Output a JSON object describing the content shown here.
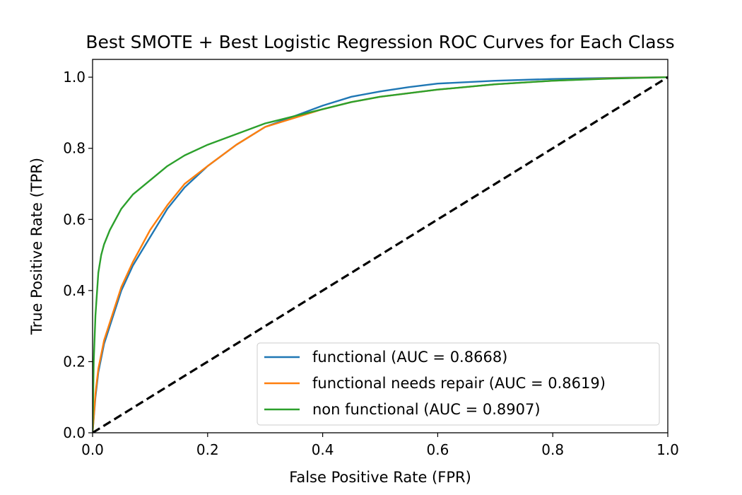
{
  "chart_data": {
    "type": "line",
    "title": "Best SMOTE + Best Logistic Regression ROC Curves for Each Class",
    "xlabel": "False Positive Rate (FPR)",
    "ylabel": "True Positive Rate (TPR)",
    "xlim": [
      0.0,
      1.0
    ],
    "ylim": [
      0.0,
      1.05
    ],
    "xticks": [
      "0.0",
      "0.2",
      "0.4",
      "0.6",
      "0.8",
      "1.0"
    ],
    "yticks": [
      "0.0",
      "0.2",
      "0.4",
      "0.6",
      "0.8",
      "1.0"
    ],
    "grid": false,
    "legend_position": "lower-right",
    "series": [
      {
        "name": "functional (AUC = 0.8668)",
        "color": "#1f77b4",
        "x": [
          0.0,
          0.005,
          0.01,
          0.02,
          0.03,
          0.05,
          0.07,
          0.1,
          0.13,
          0.16,
          0.2,
          0.25,
          0.3,
          0.35,
          0.4,
          0.45,
          0.5,
          0.55,
          0.6,
          0.7,
          0.8,
          0.9,
          1.0
        ],
        "y": [
          0.0,
          0.1,
          0.17,
          0.25,
          0.3,
          0.4,
          0.47,
          0.55,
          0.63,
          0.69,
          0.75,
          0.81,
          0.86,
          0.89,
          0.92,
          0.945,
          0.96,
          0.972,
          0.982,
          0.99,
          0.995,
          0.998,
          1.0
        ]
      },
      {
        "name": "functional needs repair (AUC = 0.8619)",
        "color": "#ff7f0e",
        "x": [
          0.0,
          0.005,
          0.01,
          0.02,
          0.03,
          0.05,
          0.07,
          0.1,
          0.13,
          0.16,
          0.2,
          0.25,
          0.3,
          0.35,
          0.4,
          0.45,
          0.5,
          0.6,
          0.7,
          0.8,
          0.9,
          1.0
        ],
        "y": [
          0.0,
          0.11,
          0.18,
          0.26,
          0.31,
          0.41,
          0.48,
          0.57,
          0.64,
          0.7,
          0.75,
          0.81,
          0.86,
          0.885,
          0.91,
          0.93,
          0.945,
          0.965,
          0.98,
          0.99,
          0.997,
          1.0
        ]
      },
      {
        "name": "non functional (AUC = 0.8907)",
        "color": "#2ca02c",
        "x": [
          0.0,
          0.002,
          0.005,
          0.01,
          0.015,
          0.02,
          0.03,
          0.05,
          0.07,
          0.1,
          0.13,
          0.16,
          0.2,
          0.25,
          0.3,
          0.35,
          0.4,
          0.45,
          0.5,
          0.6,
          0.7,
          0.8,
          0.9,
          1.0
        ],
        "y": [
          0.0,
          0.2,
          0.33,
          0.45,
          0.5,
          0.53,
          0.57,
          0.63,
          0.67,
          0.71,
          0.75,
          0.78,
          0.81,
          0.84,
          0.87,
          0.89,
          0.91,
          0.93,
          0.945,
          0.965,
          0.98,
          0.99,
          0.996,
          1.0
        ]
      },
      {
        "name": "",
        "color": "#000000",
        "style": "dashed",
        "x": [
          0.0,
          1.0
        ],
        "y": [
          0.0,
          1.0
        ]
      }
    ]
  }
}
